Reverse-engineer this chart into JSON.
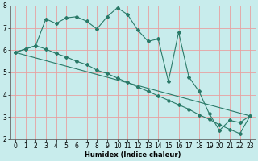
{
  "xlabel": "Humidex (Indice chaleur)",
  "bg_color": "#c8ecec",
  "grid_color": "#e8a0a0",
  "line_color": "#2a7a68",
  "xlim": [
    -0.5,
    23.5
  ],
  "ylim": [
    2,
    8
  ],
  "yticks": [
    2,
    3,
    4,
    5,
    6,
    7,
    8
  ],
  "xticks": [
    0,
    1,
    2,
    3,
    4,
    5,
    6,
    7,
    8,
    9,
    10,
    11,
    12,
    13,
    14,
    15,
    16,
    17,
    18,
    19,
    20,
    21,
    22,
    23
  ],
  "line1_x": [
    0,
    1,
    2,
    3,
    4,
    5,
    6,
    7,
    8,
    9,
    10,
    11,
    12,
    13,
    14,
    15,
    16,
    17,
    18,
    19,
    20,
    21,
    22,
    23
  ],
  "line1_y": [
    5.9,
    6.05,
    6.2,
    7.4,
    7.2,
    7.45,
    7.5,
    7.3,
    6.95,
    7.5,
    7.9,
    7.6,
    6.9,
    6.4,
    6.5,
    4.6,
    6.8,
    4.8,
    4.15,
    3.15,
    2.4,
    2.85,
    2.75,
    3.05
  ],
  "line2_x": [
    0,
    1,
    2,
    3,
    4,
    5,
    6,
    7,
    8,
    9,
    10,
    11,
    12,
    13,
    14,
    15,
    16,
    17,
    18,
    19,
    20,
    21,
    22,
    23
  ],
  "line2_y": [
    5.9,
    6.05,
    6.2,
    6.05,
    5.85,
    5.7,
    5.5,
    5.35,
    5.1,
    4.95,
    4.75,
    4.55,
    4.35,
    4.15,
    3.95,
    3.75,
    3.55,
    3.35,
    3.1,
    2.9,
    2.65,
    2.45,
    2.25,
    3.05
  ],
  "line3_x": [
    0,
    23
  ],
  "line3_y": [
    5.9,
    3.05
  ],
  "xlabel_fontsize": 6,
  "tick_fontsize": 5.5
}
